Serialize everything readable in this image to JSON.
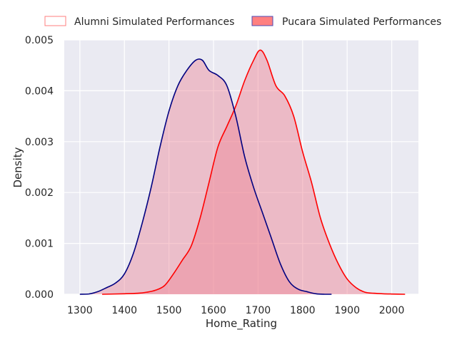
{
  "chart_data": {
    "type": "area",
    "xlabel": "Home_Rating",
    "ylabel": "Density",
    "xlim": [
      1265,
      2060
    ],
    "ylim": [
      0,
      0.005
    ],
    "x_ticks": [
      1300,
      1400,
      1500,
      1600,
      1700,
      1800,
      1900,
      2000
    ],
    "y_ticks": [
      0.0,
      0.001,
      0.002,
      0.003,
      0.004,
      0.005
    ],
    "y_tick_labels": [
      "0.000",
      "0.001",
      "0.002",
      "0.003",
      "0.004",
      "0.005"
    ],
    "grid": true,
    "legend_position": "top",
    "series": [
      {
        "name": "Alumni Simulated Performances",
        "line_color": "#ff0000",
        "fill_color": "#f08090",
        "legend_edge": "#ff7f7f",
        "legend_fill": "#ffffff",
        "x": [
          1350,
          1400,
          1430,
          1450,
          1470,
          1490,
          1510,
          1530,
          1550,
          1570,
          1590,
          1610,
          1630,
          1650,
          1670,
          1690,
          1705,
          1720,
          1740,
          1760,
          1780,
          1800,
          1820,
          1840,
          1860,
          1880,
          1900,
          1920,
          1940,
          1960,
          1980,
          2000,
          2030
        ],
        "y": [
          0.0,
          1e-05,
          2e-05,
          4e-05,
          8e-05,
          0.00017,
          0.0004,
          0.00067,
          0.00095,
          0.0015,
          0.0022,
          0.0029,
          0.0033,
          0.0037,
          0.0042,
          0.0046,
          0.0048,
          0.0046,
          0.0041,
          0.0039,
          0.0035,
          0.0028,
          0.0022,
          0.0015,
          0.001,
          0.0006,
          0.0003,
          0.00013,
          4e-05,
          2e-05,
          1e-05,
          5e-06,
          0.0
        ]
      },
      {
        "name": "Pucara Simulated Performances",
        "line_color": "#000080",
        "fill_color": "#ee8a99",
        "legend_edge": "#4b4bb8",
        "legend_fill": "#ff8080",
        "x": [
          1300,
          1320,
          1340,
          1360,
          1380,
          1400,
          1420,
          1440,
          1460,
          1480,
          1500,
          1520,
          1540,
          1560,
          1575,
          1590,
          1610,
          1630,
          1650,
          1670,
          1690,
          1710,
          1730,
          1750,
          1770,
          1790,
          1810,
          1830,
          1850,
          1865
        ],
        "y": [
          0.0,
          5e-06,
          5e-05,
          0.00013,
          0.00022,
          0.0004,
          0.0008,
          0.0014,
          0.0021,
          0.0029,
          0.0036,
          0.0041,
          0.0044,
          0.0046,
          0.0046,
          0.0044,
          0.0043,
          0.0041,
          0.0035,
          0.0027,
          0.0021,
          0.0016,
          0.0011,
          0.0006,
          0.00025,
          0.0001,
          5e-05,
          1e-05,
          0.0,
          0.0
        ]
      }
    ]
  }
}
